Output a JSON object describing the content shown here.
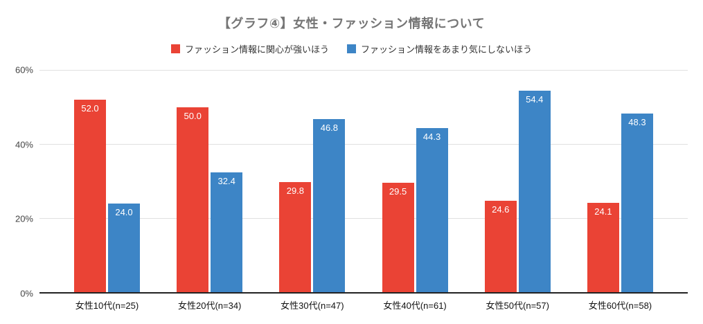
{
  "title": "【グラフ④】女性・ファッション情報について",
  "chart_data": {
    "type": "bar",
    "title": "【グラフ④】女性・ファッション情報について",
    "categories": [
      "女性10代(n=25)",
      "女性20代(n=34)",
      "女性30代(n=47)",
      "女性40代(n=61)",
      "女性50代(n=57)",
      "女性60代(n=58)"
    ],
    "series": [
      {
        "name": "ファッション情報に関心が強いほう",
        "color": "#EA4335",
        "values": [
          52.0,
          50.0,
          29.8,
          29.5,
          24.6,
          24.1
        ]
      },
      {
        "name": "ファッション情報をあまり気にしないほう",
        "color": "#3D85C6",
        "values": [
          24.0,
          32.4,
          46.8,
          44.3,
          54.4,
          48.3
        ]
      }
    ],
    "xlabel": "",
    "ylabel": "",
    "ylim": [
      0,
      60
    ],
    "yticks": [
      "0%",
      "20%",
      "40%",
      "60%"
    ],
    "grid": true,
    "legend_position": "top",
    "value_label_decimals": 1,
    "colors": {
      "grid": "#e0e0e0",
      "baseline": "#222222",
      "title": "#757575"
    }
  }
}
